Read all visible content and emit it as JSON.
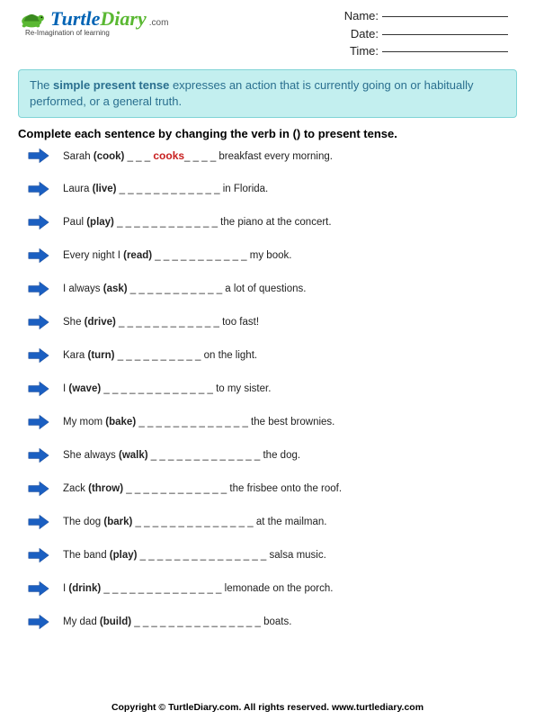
{
  "logo": {
    "text1": "Turtle",
    "text2": "Diary",
    "com": ".com",
    "caption": "Re-Imagination of learning"
  },
  "fields": {
    "name": "Name:",
    "date": "Date:",
    "time": "Time:"
  },
  "info": {
    "pre": "The ",
    "bold": "simple present tense",
    "post": " expresses an action that is currently going on or habitually performed, or a general truth."
  },
  "instruction": "Complete each sentence by changing the verb in () to present tense.",
  "example_answer": "cooks",
  "items": [
    {
      "pre": "Sarah ",
      "verb": "(cook)",
      "blanks": "_ _ _ ",
      "example": true,
      "blanks2": "_ _ _ _",
      "post": " breakfast every morning."
    },
    {
      "pre": "Laura ",
      "verb": "(live)",
      "blanks": " _ _ _ _ _ _ _ _ _ _ _ _",
      "post": " in Florida."
    },
    {
      "pre": "Paul ",
      "verb": "(play)",
      "blanks": " _ _ _ _ _ _ _ _ _ _ _ _",
      "post": " the piano at the concert."
    },
    {
      "pre": "Every night I ",
      "verb": "(read)",
      "blanks": " _ _ _ _ _ _ _ _ _ _ _",
      "post": " my book."
    },
    {
      "pre": "I always ",
      "verb": "(ask)",
      "blanks": " _ _ _ _ _ _ _ _ _ _ _",
      "post": " a lot of questions."
    },
    {
      "pre": "She ",
      "verb": "(drive)",
      "blanks": " _ _ _ _ _ _ _ _ _ _ _ _",
      "post": "  too fast!"
    },
    {
      "pre": "Kara ",
      "verb": "(turn)",
      "blanks": " _ _ _ _ _ _ _ _ _ _",
      "post": " on the light."
    },
    {
      "pre": "I ",
      "verb": "(wave)",
      "blanks": " _ _ _ _ _ _ _ _ _ _ _ _ _",
      "post": "  to my sister."
    },
    {
      "pre": "My mom ",
      "verb": "(bake)",
      "blanks": " _ _ _ _ _ _ _ _ _ _ _ _ _",
      "post": " the best brownies."
    },
    {
      "pre": "She always ",
      "verb": "(walk)",
      "blanks": " _ _ _ _ _ _ _ _ _ _ _ _ _",
      "post": " the dog."
    },
    {
      "pre": "Zack ",
      "verb": "(throw)",
      "blanks": " _ _ _ _ _ _ _ _ _ _ _ _",
      "post": " the frisbee onto the roof."
    },
    {
      "pre": "The dog ",
      "verb": "(bark)",
      "blanks": " _ _ _ _ _ _ _ _ _ _ _ _ _ _",
      "post": "  at the mailman."
    },
    {
      "pre": "The band ",
      "verb": "(play)",
      "blanks": " _ _ _ _ _ _ _ _ _ _ _ _ _ _ _",
      "post": " salsa music."
    },
    {
      "pre": "I ",
      "verb": "(drink)",
      "blanks": " _ _ _ _ _ _ _ _ _ _ _ _ _ _",
      "post": " lemonade on the porch."
    },
    {
      "pre": "My dad ",
      "verb": "(build)",
      "blanks": " _ _ _ _ _ _ _ _ _ _ _ _ _ _ _",
      "post": " boats."
    }
  ],
  "footer": "Copyright © TurtleDiary.com. All rights reserved.   www.turtlediary.com"
}
